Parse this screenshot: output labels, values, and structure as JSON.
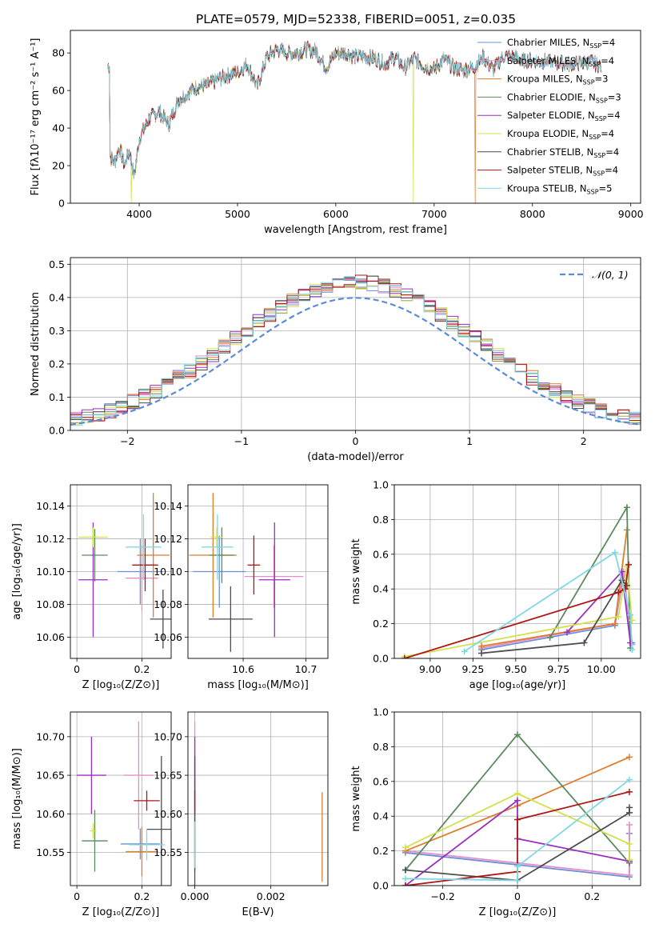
{
  "title": "PLATE=0579, MJD=52338, FIBERID=0051, z=0.035",
  "colors": {
    "chabrier_miles": "#6b8fd6",
    "salpeter_miles": "#e58fc8",
    "kroupa_miles": "#e07c2a",
    "chabrier_elodie": "#5a8a5e",
    "salpeter_elodie": "#9a2fbf",
    "kroupa_elodie": "#d4e04a",
    "chabrier_stelib": "#4d4d4d",
    "salpeter_stelib": "#b01616",
    "kroupa_stelib": "#7fd8e4",
    "gaussian": "#5b8bd6",
    "grid": "#b0b0b0"
  },
  "chart_data": [
    {
      "id": "spectrum",
      "type": "line",
      "xlabel": "wavelength [Angstrom, rest frame]",
      "ylabel": "Flux [fλ10⁻¹⁷ erg cm⁻² s⁻¹ A⁻¹]",
      "xlim": [
        3300,
        9100
      ],
      "ylim": [
        0,
        92
      ],
      "xticks": [
        4000,
        5000,
        6000,
        7000,
        8000,
        9000
      ],
      "yticks": [
        0,
        20,
        40,
        60,
        80
      ],
      "grid": false,
      "legend_position": "top-right",
      "legend": [
        {
          "label": "Chabrier MILES, N",
          "sub": "SSP",
          "suffix": "=4",
          "color": "chabrier_miles"
        },
        {
          "label": "Salpeter MILES, N",
          "sub": "SSP",
          "suffix": "=4",
          "color": "salpeter_miles"
        },
        {
          "label": "Kroupa MILES, N",
          "sub": "SSP",
          "suffix": "=3",
          "color": "kroupa_miles"
        },
        {
          "label": "Chabrier ELODIE, N",
          "sub": "SSP",
          "suffix": "=3",
          "color": "chabrier_elodie"
        },
        {
          "label": "Salpeter ELODIE, N",
          "sub": "SSP",
          "suffix": "=4",
          "color": "salpeter_elodie"
        },
        {
          "label": "Kroupa ELODIE, N",
          "sub": "SSP",
          "suffix": "=4",
          "color": "kroupa_elodie"
        },
        {
          "label": "Chabrier STELIB, N",
          "sub": "SSP",
          "suffix": "=4",
          "color": "chabrier_stelib"
        },
        {
          "label": "Salpeter STELIB, N",
          "sub": "SSP",
          "suffix": "=4",
          "color": "salpeter_stelib"
        },
        {
          "label": "Kroupa STELIB, N",
          "sub": "SSP",
          "suffix": "=5",
          "color": "kroupa_stelib"
        }
      ],
      "profile": [
        [
          3700,
          25
        ],
        [
          3750,
          22
        ],
        [
          3800,
          30
        ],
        [
          3850,
          20
        ],
        [
          3900,
          28
        ],
        [
          3950,
          14
        ],
        [
          4000,
          34
        ],
        [
          4100,
          45
        ],
        [
          4200,
          49
        ],
        [
          4300,
          42
        ],
        [
          4400,
          55
        ],
        [
          4500,
          59
        ],
        [
          4600,
          62
        ],
        [
          4700,
          63
        ],
        [
          4800,
          66
        ],
        [
          4900,
          68
        ],
        [
          5000,
          70
        ],
        [
          5100,
          74
        ],
        [
          5200,
          62
        ],
        [
          5300,
          78
        ],
        [
          5400,
          82
        ],
        [
          5500,
          80
        ],
        [
          5600,
          80
        ],
        [
          5700,
          82
        ],
        [
          5800,
          81
        ],
        [
          5900,
          72
        ],
        [
          6000,
          80
        ],
        [
          6100,
          80
        ],
        [
          6200,
          78
        ],
        [
          6300,
          78
        ],
        [
          6400,
          77
        ],
        [
          6500,
          74
        ],
        [
          6600,
          78
        ],
        [
          6700,
          72
        ],
        [
          6800,
          77
        ],
        [
          6900,
          73
        ],
        [
          7000,
          71
        ],
        [
          7100,
          77
        ],
        [
          7200,
          72
        ],
        [
          7300,
          71
        ],
        [
          7400,
          72
        ],
        [
          7500,
          78
        ],
        [
          7600,
          71
        ],
        [
          7700,
          78
        ],
        [
          7800,
          78
        ],
        [
          7900,
          76
        ],
        [
          8000,
          76
        ],
        [
          8200,
          75
        ],
        [
          8400,
          74
        ],
        [
          8600,
          75
        ],
        [
          8700,
          73
        ]
      ],
      "dropouts": [
        {
          "series": "kroupa_elodie",
          "x": 3920
        },
        {
          "series": "kroupa_elodie",
          "x": 6790
        },
        {
          "series": "kroupa_miles",
          "x": 7420
        }
      ]
    },
    {
      "id": "residuals",
      "type": "histogram",
      "xlabel": "(data-model)/error",
      "ylabel": "Normed distribution",
      "xlim": [
        -2.5,
        2.5
      ],
      "ylim": [
        0,
        0.52
      ],
      "xticks": [
        -2,
        -1,
        0,
        1,
        2
      ],
      "yticks": [
        0.0,
        0.1,
        0.2,
        0.3,
        0.4,
        0.5
      ],
      "grid": true,
      "legend_position": "top-right",
      "legend": [
        {
          "label": "𝒩(0, 1)",
          "color": "gaussian",
          "style": "dashed"
        }
      ],
      "bin_width": 0.1
    },
    {
      "id": "age-vs-z",
      "type": "errorbar",
      "xlabel": "Z [log₁₀(Z/Z⊙)]",
      "ylabel": "age  [log₁₀(age/yr)]",
      "xlim": [
        -0.02,
        0.29
      ],
      "ylim": [
        10.047,
        10.153
      ],
      "xticks": [
        0.0,
        0.2
      ],
      "yticks": [
        10.06,
        10.08,
        10.1,
        10.12,
        10.14
      ],
      "grid": true,
      "points": [
        {
          "series": "chabrier_miles",
          "x": 0.195,
          "xerr": 0.07,
          "y": 10.1,
          "yerr": 0.02
        },
        {
          "series": "salpeter_miles",
          "x": 0.2,
          "xerr": 0.05,
          "y": 10.096,
          "yerr": 0.02
        },
        {
          "series": "kroupa_miles",
          "x": 0.235,
          "xerr": 0.05,
          "y": 10.11,
          "yerr": 0.038
        },
        {
          "series": "chabrier_elodie",
          "x": 0.055,
          "xerr": 0.04,
          "y": 10.11,
          "yerr": 0.016
        },
        {
          "series": "salpeter_elodie",
          "x": 0.05,
          "xerr": 0.045,
          "y": 10.095,
          "yerr": 0.035
        },
        {
          "series": "kroupa_elodie",
          "x": 0.05,
          "xerr": 0.045,
          "y": 10.121,
          "yerr": 0.006
        },
        {
          "series": "chabrier_stelib",
          "x": 0.265,
          "xerr": 0.04,
          "y": 10.071,
          "yerr": 0.018
        },
        {
          "series": "salpeter_stelib",
          "x": 0.21,
          "xerr": 0.04,
          "y": 10.104,
          "yerr": 0.016
        },
        {
          "series": "kroupa_stelib",
          "x": 0.205,
          "xerr": 0.055,
          "y": 10.115,
          "yerr": 0.02
        }
      ]
    },
    {
      "id": "age-vs-mass",
      "type": "errorbar",
      "xlabel": "mass [log₁₀(M/M⊙)]",
      "ylabel": "",
      "xlim": [
        10.512,
        10.735
      ],
      "ylim": [
        10.047,
        10.153
      ],
      "xticks": [
        10.6,
        10.7
      ],
      "yticks": [
        10.06,
        10.08,
        10.1,
        10.12,
        10.14
      ],
      "grid": true,
      "points": [
        {
          "series": "chabrier_miles",
          "x": 10.562,
          "xerr": 0.042,
          "y": 10.1,
          "yerr": 0.022
        },
        {
          "series": "salpeter_miles",
          "x": 10.649,
          "xerr": 0.047,
          "y": 10.097,
          "yerr": 0.019
        },
        {
          "series": "kroupa_miles",
          "x": 10.552,
          "xerr": 0.038,
          "y": 10.11,
          "yerr": 0.038
        },
        {
          "series": "chabrier_elodie",
          "x": 10.566,
          "xerr": 0.02,
          "y": 10.11,
          "yerr": 0.017
        },
        {
          "series": "salpeter_elodie",
          "x": 10.65,
          "xerr": 0.025,
          "y": 10.095,
          "yerr": 0.035
        },
        {
          "series": "kroupa_elodie",
          "x": 10.558,
          "xerr": 0.01,
          "y": 10.121,
          "yerr": 0.006
        },
        {
          "series": "chabrier_stelib",
          "x": 10.58,
          "xerr": 0.035,
          "y": 10.071,
          "yerr": 0.02
        },
        {
          "series": "salpeter_stelib",
          "x": 10.617,
          "xerr": 0.01,
          "y": 10.104,
          "yerr": 0.018
        },
        {
          "series": "kroupa_stelib",
          "x": 10.559,
          "xerr": 0.025,
          "y": 10.115,
          "yerr": 0.02
        }
      ]
    },
    {
      "id": "weight-vs-age",
      "type": "line",
      "xlabel": "age  [log₁₀(age/yr)]",
      "ylabel": "mass weight",
      "xlim": [
        8.79,
        10.23
      ],
      "ylim": [
        0,
        1.0
      ],
      "xticks": [
        9.0,
        9.25,
        9.5,
        9.75,
        10.0
      ],
      "xtick_labels": [
        "9.00",
        "9.25",
        "9.50",
        "9.75",
        "10.00"
      ],
      "yticks": [
        0.0,
        0.2,
        0.4,
        0.6,
        0.8,
        1.0
      ],
      "grid": true,
      "series": [
        {
          "series": "chabrier_miles",
          "x": [
            9.3,
            10.08,
            10.13,
            10.18
          ],
          "y": [
            0.05,
            0.19,
            0.48,
            0.09
          ]
        },
        {
          "series": "salpeter_miles",
          "x": [
            9.3,
            10.08,
            10.13,
            10.18
          ],
          "y": [
            0.06,
            0.2,
            0.5,
            0.08
          ]
        },
        {
          "series": "kroupa_miles",
          "x": [
            9.3,
            10.08,
            10.15
          ],
          "y": [
            0.07,
            0.2,
            0.74
          ]
        },
        {
          "series": "chabrier_elodie",
          "x": [
            9.7,
            10.15,
            10.17
          ],
          "y": [
            0.12,
            0.87,
            0.06
          ]
        },
        {
          "series": "salpeter_elodie",
          "x": [
            9.8,
            10.12,
            10.17
          ],
          "y": [
            0.15,
            0.5,
            0.09
          ]
        },
        {
          "series": "kroupa_elodie",
          "x": [
            8.85,
            10.1,
            10.15,
            10.18
          ],
          "y": [
            0.01,
            0.24,
            0.53,
            0.22
          ]
        },
        {
          "series": "chabrier_stelib",
          "x": [
            9.3,
            9.9,
            10.12,
            10.15
          ],
          "y": [
            0.03,
            0.09,
            0.45,
            0.42
          ]
        },
        {
          "series": "salpeter_stelib",
          "x": [
            8.85,
            10.1,
            10.14,
            10.16
          ],
          "y": [
            0.0,
            0.38,
            0.4,
            0.54
          ]
        },
        {
          "series": "kroupa_stelib",
          "x": [
            9.2,
            10.08,
            10.17,
            10.18
          ],
          "y": [
            0.04,
            0.61,
            0.25,
            0.05
          ]
        }
      ]
    },
    {
      "id": "weight-vs-z",
      "type": "line",
      "xlabel": "Z [log₁₀(Z/Z⊙)]",
      "ylabel": "mass weight",
      "xlim": [
        -0.33,
        0.33
      ],
      "ylim": [
        0,
        1.0
      ],
      "xticks": [
        -0.2,
        0.0,
        0.2
      ],
      "yticks": [
        0.0,
        0.2,
        0.4,
        0.6,
        0.8,
        1.0
      ],
      "grid": true,
      "series": [
        {
          "series": "chabrier_miles",
          "x": [
            -0.3,
            0.0,
            0.3,
            0.3
          ],
          "y": [
            0.19,
            0.12,
            0.05,
            0.3
          ]
        },
        {
          "series": "salpeter_miles",
          "x": [
            -0.3,
            0.0,
            0.3,
            0.3
          ],
          "y": [
            0.2,
            0.13,
            0.06,
            0.35
          ]
        },
        {
          "series": "kroupa_miles",
          "x": [
            -0.3,
            0.0,
            0.3
          ],
          "y": [
            0.2,
            0.46,
            0.74
          ]
        },
        {
          "series": "chabrier_elodie",
          "x": [
            -0.3,
            0.0,
            0.3
          ],
          "y": [
            0.09,
            0.87,
            0.13
          ]
        },
        {
          "series": "salpeter_elodie",
          "x": [
            -0.3,
            0.0,
            0.0,
            0.3
          ],
          "y": [
            0.0,
            0.49,
            0.27,
            0.14
          ]
        },
        {
          "series": "kroupa_elodie",
          "x": [
            -0.3,
            0.0,
            0.3,
            0.3
          ],
          "y": [
            0.22,
            0.53,
            0.24,
            0.15
          ]
        },
        {
          "series": "chabrier_stelib",
          "x": [
            -0.3,
            0.0,
            0.3,
            0.3
          ],
          "y": [
            0.09,
            0.03,
            0.42,
            0.45
          ]
        },
        {
          "series": "salpeter_stelib",
          "x": [
            -0.3,
            0.0,
            0.0,
            0.3
          ],
          "y": [
            0.0,
            0.08,
            0.38,
            0.54
          ]
        },
        {
          "series": "kroupa_stelib",
          "x": [
            -0.3,
            0.0,
            0.0,
            0.3
          ],
          "y": [
            0.04,
            0.03,
            0.11,
            0.61
          ]
        }
      ]
    },
    {
      "id": "mass-vs-z",
      "type": "errorbar",
      "xlabel": "Z [log₁₀(Z/Z⊙)]",
      "ylabel": "mass [log₁₀(M/M⊙)]",
      "xlim": [
        -0.02,
        0.29
      ],
      "ylim": [
        10.507,
        10.732
      ],
      "xticks": [
        0.0,
        0.2
      ],
      "yticks": [
        10.55,
        10.6,
        10.65,
        10.7
      ],
      "grid": true,
      "points": [
        {
          "series": "chabrier_miles",
          "x": 0.195,
          "xerr": 0.06,
          "y": 10.561,
          "yerr": 0.02
        },
        {
          "series": "salpeter_miles",
          "x": 0.19,
          "xerr": 0.045,
          "y": 10.65,
          "yerr": 0.07
        },
        {
          "series": "kroupa_miles",
          "x": 0.2,
          "xerr": 0.05,
          "y": 10.551,
          "yerr": 0.032
        },
        {
          "series": "chabrier_elodie",
          "x": 0.055,
          "xerr": 0.04,
          "y": 10.565,
          "yerr": 0.04
        },
        {
          "series": "salpeter_elodie",
          "x": 0.045,
          "xerr": 0.045,
          "y": 10.65,
          "yerr": 0.05
        },
        {
          "series": "kroupa_elodie",
          "x": 0.05,
          "xerr": 0.01,
          "y": 10.578,
          "yerr": 0.01
        },
        {
          "series": "chabrier_stelib",
          "x": 0.26,
          "xerr": 0.045,
          "y": 10.58,
          "yerr": 0.095
        },
        {
          "series": "salpeter_stelib",
          "x": 0.215,
          "xerr": 0.04,
          "y": 10.617,
          "yerr": 0.013
        },
        {
          "series": "kroupa_stelib",
          "x": 0.215,
          "xerr": 0.055,
          "y": 10.56,
          "yerr": 0.02
        }
      ]
    },
    {
      "id": "mass-vs-ebv",
      "type": "errorbar",
      "xlabel": "E(B-V)",
      "ylabel": "",
      "xlim": [
        -0.00018,
        0.0035
      ],
      "ylim": [
        10.507,
        10.732
      ],
      "xticks": [
        0.0,
        0.002
      ],
      "xtick_labels": [
        "0.000",
        "0.002"
      ],
      "yticks": [
        10.55,
        10.6,
        10.65,
        10.7
      ],
      "grid": true,
      "points": [
        {
          "series": "chabrier_miles",
          "x": 0.0,
          "xerr": 0.0,
          "y": 10.561,
          "yerr": 0.02
        },
        {
          "series": "salpeter_miles",
          "x": 0.0,
          "xerr": 0.0,
          "y": 10.65,
          "yerr": 0.07
        },
        {
          "series": "kroupa_miles",
          "x": 0.00335,
          "xerr": 0.0,
          "y": 10.57,
          "yerr": 0.058
        },
        {
          "series": "chabrier_elodie",
          "x": 0.0,
          "xerr": 0.0,
          "y": 10.565,
          "yerr": 0.04
        },
        {
          "series": "salpeter_elodie",
          "x": 0.0,
          "xerr": 0.0,
          "y": 10.65,
          "yerr": 0.05
        },
        {
          "series": "kroupa_elodie",
          "x": 0.0,
          "xerr": 0.0,
          "y": 10.578,
          "yerr": 0.01
        },
        {
          "series": "chabrier_stelib",
          "x": 0.0,
          "xerr": 0.0,
          "y": 10.58,
          "yerr": 0.095
        },
        {
          "series": "salpeter_stelib",
          "x": 0.0,
          "xerr": 0.0,
          "y": 10.617,
          "yerr": 0.013
        },
        {
          "series": "kroupa_stelib",
          "x": 0.0,
          "xerr": 0.0,
          "y": 10.56,
          "yerr": 0.03
        }
      ]
    }
  ]
}
